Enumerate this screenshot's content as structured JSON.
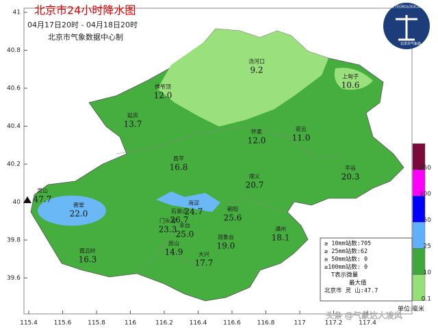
{
  "header": {
    "title": "北京市24小时降水图",
    "period": "04月17日20时 - 04月18日20时",
    "producer": "北京市气象数据中心制"
  },
  "logo": {
    "text": "BEIJING METEOROLOGICAL SERVICE",
    "name": "北京市气象局"
  },
  "axes": {
    "lat_labels": [
      "41",
      "40.8",
      "40.6",
      "40.4",
      "40.2",
      "40",
      "39.8",
      "39.6"
    ],
    "lon_labels": [
      "115.4",
      "115.6",
      "115.8",
      "116",
      "116.2",
      "116.4",
      "116.6",
      "116.8",
      "117",
      "117.2",
      "117.4"
    ]
  },
  "stations": [
    {
      "name": "汤河口",
      "value": "9.2"
    },
    {
      "name": "上甸子",
      "value": "10.6"
    },
    {
      "name": "佛爷顶",
      "value": "12.0"
    },
    {
      "name": "延庆",
      "value": "13.7"
    },
    {
      "name": "怀柔",
      "value": "12.0"
    },
    {
      "name": "密云",
      "value": "11.0"
    },
    {
      "name": "昌平",
      "value": "16.8"
    },
    {
      "name": "平谷",
      "value": "20.3"
    },
    {
      "name": "顺义",
      "value": "20.7"
    },
    {
      "name": "灵山",
      "value": "47.7"
    },
    {
      "name": "斋堂",
      "value": "22.0"
    },
    {
      "name": "海淀",
      "value": "24.7"
    },
    {
      "name": "石景山",
      "value": "26.7"
    },
    {
      "name": "朝阳",
      "value": "25.6"
    },
    {
      "name": "门头沟",
      "value": "23.3"
    },
    {
      "name": "丰台",
      "value": "25.0"
    },
    {
      "name": "观象台",
      "value": "19.0"
    },
    {
      "name": "通州",
      "value": "18.1"
    },
    {
      "name": "霞云岭",
      "value": "16.3"
    },
    {
      "name": "房山",
      "value": "14.9"
    },
    {
      "name": "大兴",
      "value": "17.7"
    }
  ],
  "summary": {
    "lines": [
      "≥ 10mm站数:705",
      "≥ 25mm站数:62",
      "≥ 50mm站数: 0",
      "≥100mm站数: 0",
      "T表示微量",
      "最大值",
      "北京市 灵 山:47.7"
    ]
  },
  "colorbar": {
    "labels": [
      "250",
      "100",
      "50",
      "25",
      "10",
      "0.1"
    ],
    "colors": [
      "#7a0a3c",
      "#ff00ff",
      "#0000ff",
      "#5fb0ff",
      "#3fa83c",
      "#96e07a"
    ],
    "unit": "单位:毫米"
  },
  "watermark": "头条 @气象达人凌风"
}
